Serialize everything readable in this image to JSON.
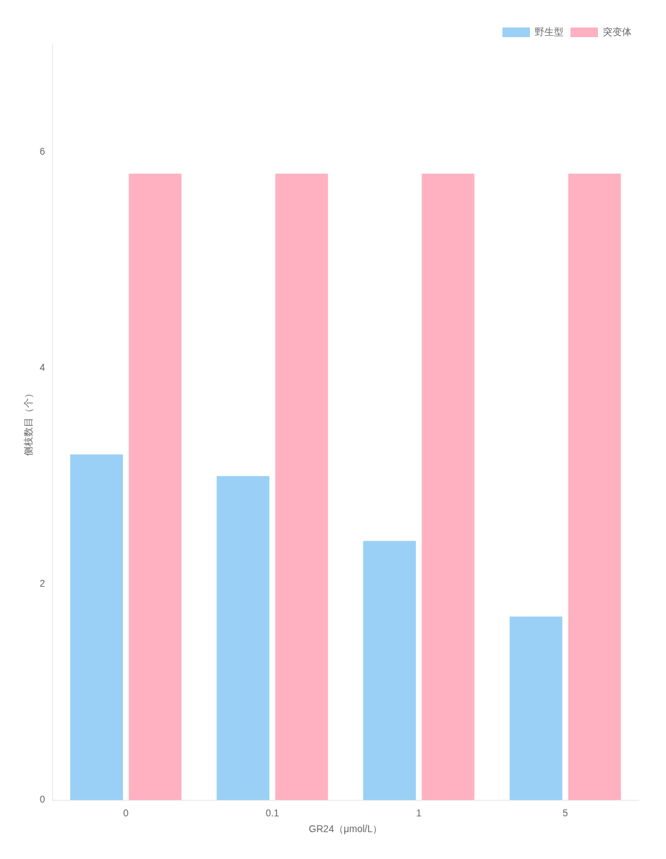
{
  "chart_data": {
    "type": "bar",
    "categories": [
      "0",
      "0.1",
      "1",
      "5"
    ],
    "series": [
      {
        "name": "野生型",
        "values": [
          3.2,
          3.0,
          2.4,
          1.7
        ]
      },
      {
        "name": "突变体",
        "values": [
          5.8,
          5.8,
          5.8,
          5.8
        ]
      }
    ],
    "x_label": "GR24（μmol/L）",
    "y_label": "侧枝数目（个）",
    "ylim": [
      0,
      7
    ],
    "yticks": [
      0,
      2,
      4,
      6
    ],
    "grid": false,
    "legend": "upper right"
  }
}
